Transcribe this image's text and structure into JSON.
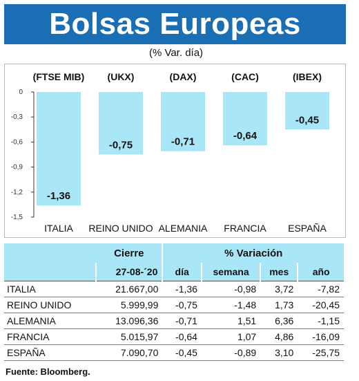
{
  "header": {
    "title": "Bolsas Europeas",
    "subtitle": "(% Var. día)"
  },
  "chart_data": {
    "type": "bar",
    "categories": [
      "ITALIA",
      "REINO UNIDO",
      "ALEMANIA",
      "FRANCIA",
      "ESPAÑA"
    ],
    "index_labels": [
      "(FTSE MIB)",
      "(UKX)",
      "(DAX)",
      "(CAC)",
      "(IBEX)"
    ],
    "values": [
      -1.36,
      -0.75,
      -0.71,
      -0.64,
      -0.45
    ],
    "value_labels": [
      "-1,36",
      "-0,75",
      "-0,71",
      "-0,64",
      "-0,45"
    ],
    "y_ticks": [
      0,
      -0.3,
      -0.6,
      -0.9,
      -1.2,
      -1.5
    ],
    "y_tick_labels": [
      "0",
      "-0,3",
      "-0,6",
      "-0,9",
      "-1,2",
      "-1,5"
    ],
    "ylim": [
      -1.5,
      0
    ],
    "grid": false,
    "bar_color": "#a9e7f8"
  },
  "table": {
    "group_headers": {
      "cierre": "Cierre",
      "variacion": "% Variación"
    },
    "sub_headers": {
      "fecha": "27-08-´20",
      "dia": "día",
      "semana": "semana",
      "mes": "mes",
      "anio": "año"
    },
    "rows": [
      {
        "name": "ITALIA",
        "cierre": "21.667,00",
        "dia": "-1,36",
        "semana": "-0,98",
        "mes": "3,72",
        "anio": "-7,82"
      },
      {
        "name": "REINO UNIDO",
        "cierre": "5.999,99",
        "dia": "-0,75",
        "semana": "-1,48",
        "mes": "1,73",
        "anio": "-20,45"
      },
      {
        "name": "ALEMANIA",
        "cierre": "13.096,36",
        "dia": "-0,71",
        "semana": "1,51",
        "mes": "6,36",
        "anio": "-1,15"
      },
      {
        "name": "FRANCIA",
        "cierre": "5.015,97",
        "dia": "-0,64",
        "semana": "1,07",
        "mes": "4,86",
        "anio": "-16,09"
      },
      {
        "name": "ESPAÑA",
        "cierre": "7.090,70",
        "dia": "-0,45",
        "semana": "-0,89",
        "mes": "3,10",
        "anio": "-25,75"
      }
    ]
  },
  "footer": {
    "source": "Fuente: Bloomberg."
  }
}
